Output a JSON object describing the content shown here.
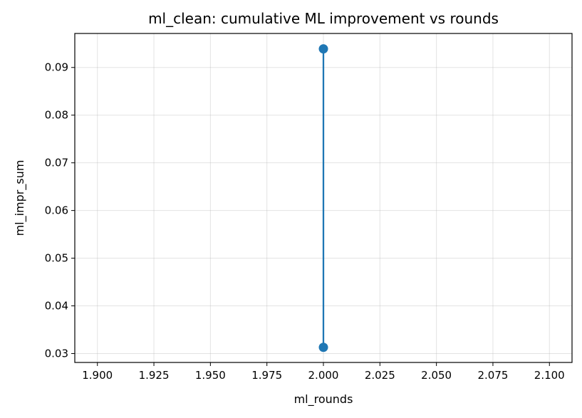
{
  "chart_data": {
    "type": "line",
    "title": "ml_clean: cumulative ML improvement vs rounds",
    "xlabel": "ml_rounds",
    "ylabel": "ml_impr_sum",
    "xlim": [
      1.89,
      2.11
    ],
    "ylim": [
      0.02813,
      0.09713
    ],
    "xticks": [
      1.9,
      1.925,
      1.95,
      1.975,
      2.0,
      2.025,
      2.05,
      2.075,
      2.1
    ],
    "xtick_labels": [
      "1.900",
      "1.925",
      "1.950",
      "1.975",
      "2.000",
      "2.025",
      "2.050",
      "2.075",
      "2.100"
    ],
    "yticks": [
      0.03,
      0.04,
      0.05,
      0.06,
      0.07,
      0.08,
      0.09
    ],
    "ytick_labels": [
      "0.03",
      "0.04",
      "0.05",
      "0.06",
      "0.07",
      "0.08",
      "0.09"
    ],
    "grid": true,
    "series": [
      {
        "color": "#1f77b4",
        "marker": "circle",
        "points": [
          {
            "x": 2.0,
            "y": 0.0313
          },
          {
            "x": 2.0,
            "y": 0.0939
          }
        ]
      }
    ]
  }
}
